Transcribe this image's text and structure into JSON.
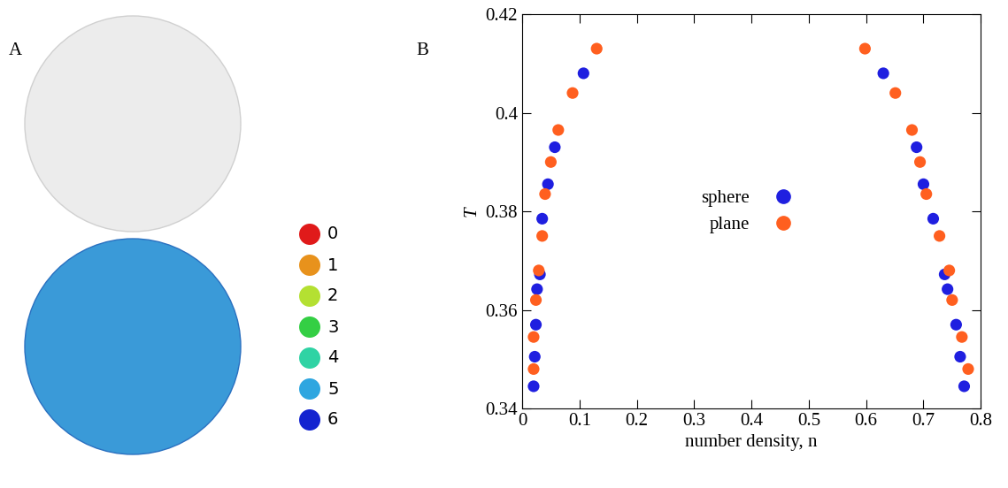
{
  "panel_labels": [
    "A",
    "B"
  ],
  "colour_key": {
    "labels": [
      "0",
      "1",
      "2",
      "3",
      "4",
      "5",
      "6"
    ],
    "colors": [
      "#e01a1a",
      "#e8921c",
      "#b4e032",
      "#34cf44",
      "#2fd3a4",
      "#2ea6e0",
      "#1424d0"
    ]
  },
  "chart_data": {
    "type": "scatter",
    "x_label": "number density, n",
    "y_label": "T",
    "xlim": [
      0,
      0.8
    ],
    "ylim": [
      0.34,
      0.42
    ],
    "xticks": [
      0,
      0.1,
      0.2,
      0.3,
      0.4,
      0.5,
      0.6,
      0.7,
      0.8
    ],
    "yticks": [
      0.34,
      0.36,
      0.38,
      0.4,
      0.42
    ],
    "legend": "center",
    "series": [
      {
        "name": "sphere",
        "color": "#1f1fe0",
        "marker": "circle",
        "x": [
          0.107,
          0.057,
          0.045,
          0.035,
          0.031,
          0.026,
          0.024,
          0.022,
          0.02,
          0.63,
          0.688,
          0.7,
          0.717,
          0.737,
          0.742,
          0.757,
          0.764,
          0.771
        ],
        "y": [
          0.408,
          0.393,
          0.3855,
          0.3785,
          0.3672,
          0.3642,
          0.357,
          0.3505,
          0.3445,
          0.408,
          0.393,
          0.3855,
          0.3785,
          0.3672,
          0.3642,
          0.357,
          0.3505,
          0.3445
        ]
      },
      {
        "name": "plane",
        "color": "#ff5f1f",
        "marker": "circle",
        "x": [
          0.13,
          0.088,
          0.063,
          0.05,
          0.04,
          0.035,
          0.029,
          0.024,
          0.02,
          0.02,
          0.598,
          0.651,
          0.68,
          0.694,
          0.705,
          0.728,
          0.745,
          0.75,
          0.767,
          0.778
        ],
        "y": [
          0.413,
          0.404,
          0.3965,
          0.39,
          0.3835,
          0.375,
          0.368,
          0.362,
          0.3545,
          0.348,
          0.413,
          0.404,
          0.3965,
          0.39,
          0.3835,
          0.375,
          0.368,
          0.362,
          0.3545,
          0.348
        ]
      }
    ]
  }
}
